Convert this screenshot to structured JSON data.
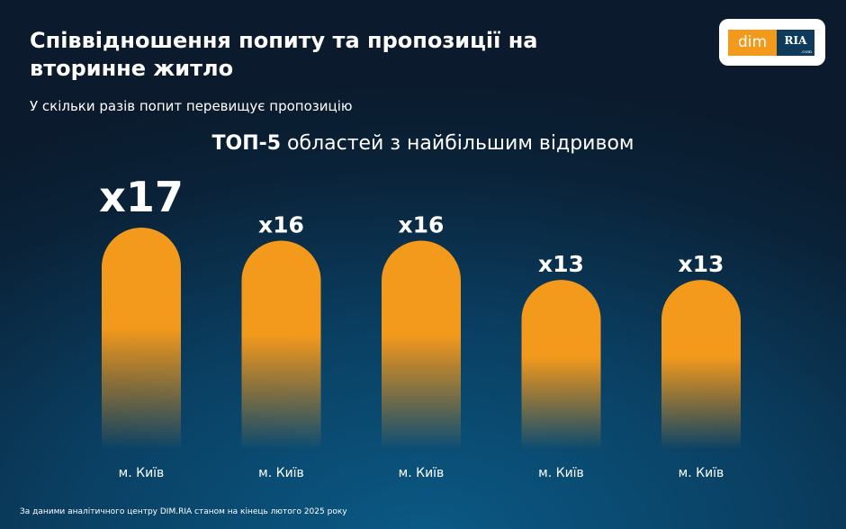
{
  "title": "Співвідношення попиту та пропозиції на вторинне житло",
  "subtitle": "У скільки разів попит перевищує пропозицію",
  "heading": {
    "bold": "ТОП-5",
    "rest": " областей з найбільшим відривом"
  },
  "logo": {
    "left": "dim",
    "right": "RIA",
    "domain": ".com"
  },
  "footer": "За даними аналітичного центру DIM.RIA станом на кінець лютого 2025 року",
  "colors": {
    "bar": "#f39a1c",
    "background": "#0b2238"
  },
  "chart_data": {
    "type": "bar",
    "categories": [
      "м. Київ",
      "м. Київ",
      "м. Київ",
      "м. Київ",
      "м. Київ"
    ],
    "values": [
      17,
      16,
      16,
      13,
      13
    ],
    "data_labels": [
      "x17",
      "x16",
      "x16",
      "x13",
      "x13"
    ],
    "grid": false
  }
}
